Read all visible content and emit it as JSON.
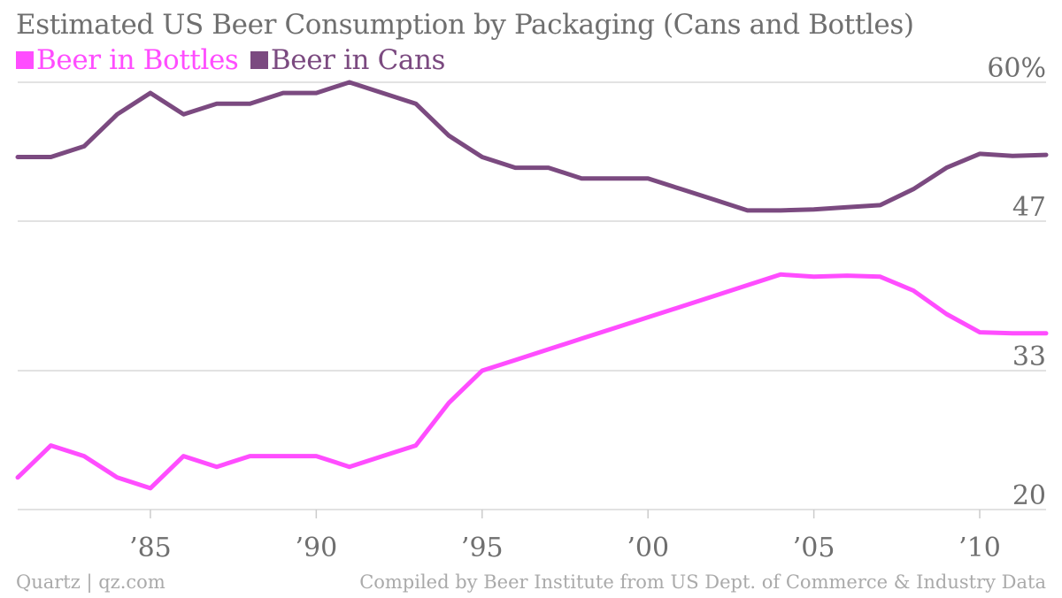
{
  "chart_data": {
    "type": "line",
    "title": "Estimated US Beer Consumption by Packaging (Cans and Bottles)",
    "x": [
      1981,
      1982,
      1983,
      1984,
      1985,
      1986,
      1987,
      1988,
      1989,
      1990,
      1991,
      1992,
      1993,
      1994,
      1995,
      1996,
      1997,
      1998,
      1999,
      2000,
      2001,
      2002,
      2003,
      2004,
      2005,
      2006,
      2007,
      2008,
      2009,
      2010,
      2011,
      2012
    ],
    "series": [
      {
        "name": "Beer in Bottles",
        "color": "#ff4dff",
        "values": [
          23,
          26,
          25,
          23,
          22,
          25,
          24,
          25,
          25,
          25,
          24,
          25,
          26,
          30,
          33,
          34,
          35,
          36,
          37,
          38,
          39,
          40,
          41,
          42,
          41.8,
          41.9,
          41.8,
          40.5,
          38.3,
          36.6,
          36.5,
          36.5
        ]
      },
      {
        "name": "Beer in Cans",
        "color": "#7b4a80",
        "values": [
          53,
          53,
          54,
          57,
          59,
          57,
          58,
          58,
          59,
          59,
          60,
          59,
          58,
          55,
          53,
          52,
          52,
          51,
          51,
          51,
          50,
          49,
          48,
          48,
          48.1,
          48.3,
          48.5,
          50,
          52,
          53.3,
          53.1,
          53.2
        ]
      }
    ],
    "ylim": [
      20,
      60
    ],
    "xlim": [
      1981,
      2012
    ],
    "y_ticks": [
      {
        "value": 60,
        "label": "60%"
      },
      {
        "value": 47,
        "label": "47"
      },
      {
        "value": 33,
        "label": "33"
      },
      {
        "value": 20,
        "label": "20"
      }
    ],
    "x_ticks": [
      {
        "value": 1985,
        "label": "’85"
      },
      {
        "value": 1990,
        "label": "’90"
      },
      {
        "value": 1995,
        "label": "’95"
      },
      {
        "value": 2000,
        "label": "’00"
      },
      {
        "value": 2005,
        "label": "’05"
      },
      {
        "value": 2010,
        "label": "’10"
      }
    ],
    "grid": true,
    "legend_position": "top-left"
  },
  "legend": {
    "bottles_label": "Beer in Bottles",
    "cans_label": "Beer in Cans",
    "bottles_color": "#ff4dff",
    "cans_color": "#7b4a80"
  },
  "footer": {
    "source_left": "Quartz | qz.com",
    "source_right": "Compiled by Beer Institute from US Dept. of Commerce & Industry Data"
  }
}
